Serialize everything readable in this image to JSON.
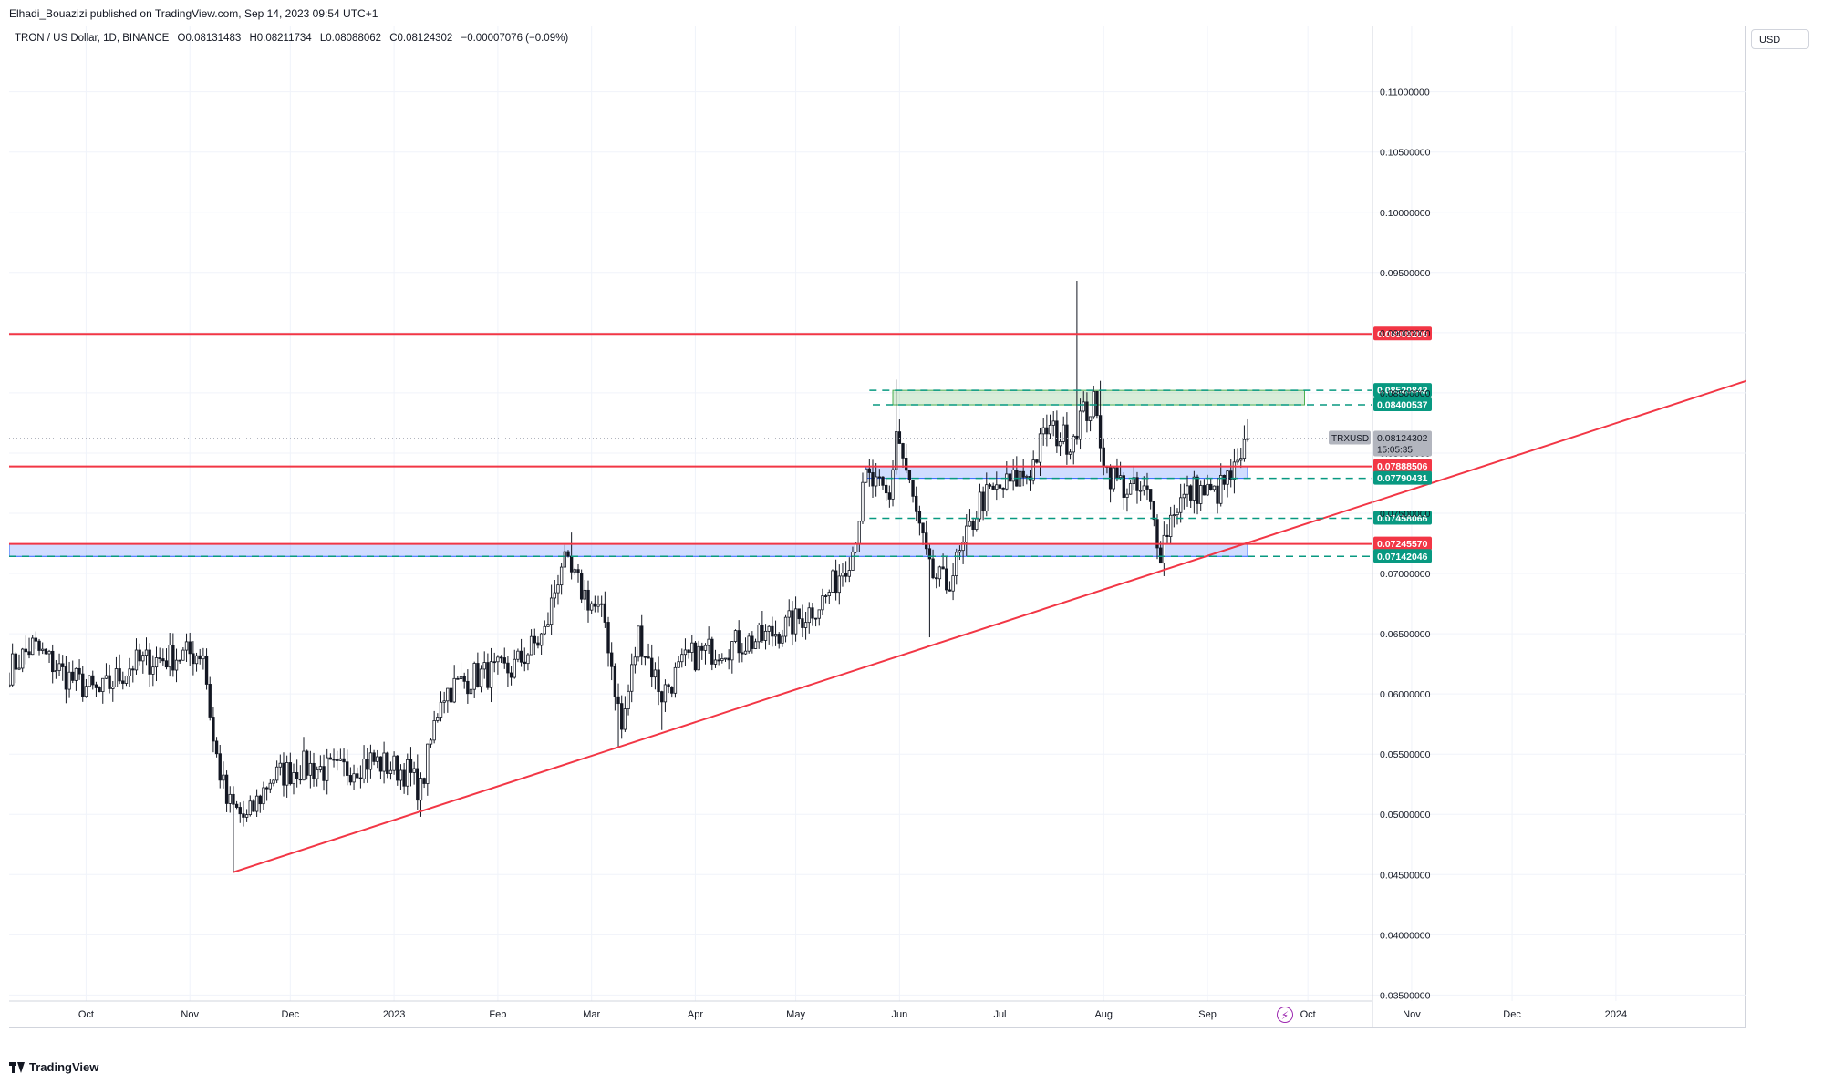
{
  "header": {
    "publisher": "Elhadi_Bouazizi published on TradingView.com, Sep 14, 2023 09:54 UTC+1",
    "symbol": "TRON / US Dollar, 1D, BINANCE",
    "open": "O0.08131483",
    "high": "H0.08211734",
    "low": "L0.08088062",
    "close": "C0.08124302",
    "change": "−0.00007076 (−0.09%)"
  },
  "price_scale": {
    "currency": "USD"
  },
  "footer": {
    "brand": "TradingView"
  },
  "icons": [
    "tradingview-logo-icon",
    "lightning-icon"
  ],
  "colors": {
    "up": "#131722",
    "down": "#131722",
    "resistance": "#f23645",
    "dashed": "#089981",
    "zone_blue": "#2962ff",
    "zone_green": "#4caf50",
    "current_price_label": "#b2b5be"
  },
  "chart_data": {
    "type": "candlestick",
    "ylim": [
      0.0345,
      0.1155
    ],
    "y_ticks": [
      "0.11000000",
      "0.10500000",
      "0.10000000",
      "0.09500000",
      "0.09000000",
      "0.08500000",
      "0.08000000",
      "0.07500000",
      "0.07000000",
      "0.06500000",
      "0.06000000",
      "0.05500000",
      "0.05000000",
      "0.04500000",
      "0.04000000",
      "0.03500000"
    ],
    "y_tick_values": [
      0.11,
      0.105,
      0.1,
      0.095,
      0.09,
      0.085,
      0.08,
      0.075,
      0.07,
      0.065,
      0.06,
      0.055,
      0.05,
      0.045,
      0.04,
      0.035
    ],
    "x_labels": [
      "Oct",
      "Nov",
      "Dec",
      "2023",
      "Feb",
      "Mar",
      "Apr",
      "May",
      "Jun",
      "Jul",
      "Aug",
      "Sep",
      "Oct",
      "Nov",
      "Dec",
      "2024"
    ],
    "x_label_dates": [
      "2022-10-01",
      "2022-11-01",
      "2022-12-01",
      "2023-01-01",
      "2023-02-01",
      "2023-03-01",
      "2023-04-01",
      "2023-05-01",
      "2023-06-01",
      "2023-07-01",
      "2023-08-01",
      "2023-09-01",
      "2023-10-01",
      "2023-11-01",
      "2023-12-01",
      "2024-01-01"
    ],
    "x_range": [
      "2022-09-08",
      "2024-02-09"
    ],
    "last_price": {
      "symbol": "TRXUSD",
      "value": "0.08124302",
      "countdown": "15:05:35"
    },
    "horizontal_lines": [
      {
        "value": 0.08989206,
        "label": "0.08989206",
        "style": "solid",
        "color": "#f23645",
        "from": "2022-09-08"
      },
      {
        "value": 0.07888506,
        "label": "0.07888506",
        "style": "solid",
        "color": "#f23645",
        "from": "2022-09-08"
      },
      {
        "value": 0.0724557,
        "label": "0.07245570",
        "style": "solid",
        "color": "#f23645",
        "from": "2022-09-08"
      },
      {
        "value": 0.08520842,
        "label": "0.08520842",
        "style": "dashed",
        "color": "#089981",
        "from": "2023-05-23"
      },
      {
        "value": 0.08400537,
        "label": "0.08400537",
        "style": "dashed",
        "color": "#089981",
        "from": "2023-05-24"
      },
      {
        "value": 0.07790431,
        "label": "0.07790431",
        "style": "dashed",
        "color": "#089981",
        "from": "2023-05-28"
      },
      {
        "value": 0.07458066,
        "label": "0.07458066",
        "style": "dashed",
        "color": "#089981",
        "from": "2023-05-23"
      },
      {
        "value": 0.07142046,
        "label": "0.07142046",
        "style": "dashed",
        "color": "#089981",
        "from": "2022-09-08"
      }
    ],
    "zones": [
      {
        "from": "2022-09-08",
        "to": "2023-09-13",
        "y1": 0.0724557,
        "y2": 0.07142046,
        "color": "#2962ff"
      },
      {
        "from": "2023-05-22",
        "to": "2023-09-13",
        "y1": 0.07888506,
        "y2": 0.07790431,
        "color": "#2962ff"
      },
      {
        "from": "2023-05-30",
        "to": "2023-09-30",
        "y1": 0.08520842,
        "y2": 0.08400537,
        "color": "#4caf50"
      }
    ],
    "trendline": {
      "start": {
        "date": "2022-11-14",
        "value": 0.0452
      },
      "end": {
        "date": "2024-02-09",
        "value": 0.086
      }
    },
    "candles_anchor": [
      [
        "2022-09-08",
        0.062
      ],
      [
        "2022-09-15",
        0.064
      ],
      [
        "2022-09-25",
        0.0615
      ],
      [
        "2022-10-05",
        0.06
      ],
      [
        "2022-10-15",
        0.0625
      ],
      [
        "2022-10-25",
        0.063
      ],
      [
        "2022-11-05",
        0.0635
      ],
      [
        "2022-11-08",
        0.056
      ],
      [
        "2022-11-12",
        0.051
      ],
      [
        "2022-11-18",
        0.0495
      ],
      [
        "2022-11-25",
        0.053
      ],
      [
        "2022-12-05",
        0.054
      ],
      [
        "2022-12-15",
        0.0535
      ],
      [
        "2022-12-25",
        0.0545
      ],
      [
        "2023-01-05",
        0.0535
      ],
      [
        "2023-01-09",
        0.052
      ],
      [
        "2023-01-15",
        0.06
      ],
      [
        "2023-01-25",
        0.0615
      ],
      [
        "2023-02-05",
        0.062
      ],
      [
        "2023-02-15",
        0.065
      ],
      [
        "2023-02-20",
        0.071
      ],
      [
        "2023-02-25",
        0.069
      ],
      [
        "2023-03-05",
        0.066
      ],
      [
        "2023-03-10",
        0.057
      ],
      [
        "2023-03-15",
        0.065
      ],
      [
        "2023-03-22",
        0.06
      ],
      [
        "2023-03-30",
        0.063
      ],
      [
        "2023-04-10",
        0.064
      ],
      [
        "2023-04-20",
        0.0645
      ],
      [
        "2023-05-01",
        0.066
      ],
      [
        "2023-05-10",
        0.068
      ],
      [
        "2023-05-18",
        0.072
      ],
      [
        "2023-05-22",
        0.078
      ],
      [
        "2023-05-29",
        0.076
      ],
      [
        "2023-05-31",
        0.082
      ],
      [
        "2023-06-05",
        0.076
      ],
      [
        "2023-06-10",
        0.07
      ],
      [
        "2023-06-15",
        0.069
      ],
      [
        "2023-06-20",
        0.072
      ],
      [
        "2023-06-25",
        0.076
      ],
      [
        "2023-07-01",
        0.077
      ],
      [
        "2023-07-10",
        0.0785
      ],
      [
        "2023-07-15",
        0.082
      ],
      [
        "2023-07-22",
        0.081
      ],
      [
        "2023-07-25",
        0.083
      ],
      [
        "2023-07-29",
        0.084
      ],
      [
        "2023-08-02",
        0.0785
      ],
      [
        "2023-08-08",
        0.077
      ],
      [
        "2023-08-14",
        0.0765
      ],
      [
        "2023-08-18",
        0.072
      ],
      [
        "2023-08-22",
        0.0755
      ],
      [
        "2023-08-28",
        0.077
      ],
      [
        "2023-09-03",
        0.0765
      ],
      [
        "2023-09-08",
        0.078
      ],
      [
        "2023-09-11",
        0.079
      ],
      [
        "2023-09-13",
        0.0812
      ]
    ],
    "wick_highlights": [
      [
        "2022-11-14",
        0.0452
      ],
      [
        "2023-01-09",
        0.0498
      ],
      [
        "2023-02-23",
        0.0734
      ],
      [
        "2023-03-09",
        0.0556
      ],
      [
        "2023-03-22",
        0.057
      ],
      [
        "2023-05-31",
        0.0861
      ],
      [
        "2023-06-10",
        0.0647
      ],
      [
        "2023-07-24",
        0.0943
      ],
      [
        "2023-07-31",
        0.086
      ],
      [
        "2023-08-17",
        0.0712
      ],
      [
        "2023-09-13",
        0.0828
      ]
    ]
  }
}
